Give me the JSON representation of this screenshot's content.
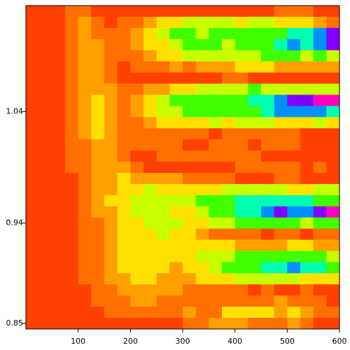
{
  "chart_data": {
    "type": "heatmap",
    "xlim": [
      0,
      600
    ],
    "ylim": [
      0.845,
      1.135
    ],
    "xticks": [
      100,
      200,
      300,
      400,
      500,
      600
    ],
    "yticks": [
      0.85,
      0.94,
      1.04
    ],
    "colors": [
      "#ff4000",
      "#ff7000",
      "#ffa000",
      "#ffe000",
      "#c8ff00",
      "#40ff00",
      "#00ffb0",
      "#0090ff",
      "#8000ff",
      "#ff00c0"
    ],
    "z": [
      [
        0,
        0,
        0,
        1,
        1,
        0,
        0,
        0,
        0,
        0,
        0,
        0,
        0,
        0,
        0,
        0,
        0,
        0,
        0,
        1,
        1,
        1,
        0,
        0
      ],
      [
        0,
        0,
        0,
        1,
        2,
        1,
        0,
        1,
        1,
        2,
        3,
        3,
        4,
        4,
        4,
        4,
        3,
        4,
        4,
        3,
        3,
        3,
        2,
        1
      ],
      [
        0,
        0,
        0,
        1,
        2,
        1,
        1,
        1,
        2,
        3,
        4,
        5,
        5,
        4,
        5,
        5,
        5,
        5,
        5,
        5,
        6,
        6,
        7,
        8
      ],
      [
        0,
        0,
        0,
        1,
        2,
        2,
        1,
        1,
        2,
        3,
        3,
        4,
        5,
        5,
        5,
        4,
        5,
        5,
        5,
        6,
        7,
        6,
        7,
        8
      ],
      [
        0,
        0,
        0,
        1,
        2,
        2,
        1,
        1,
        1,
        2,
        3,
        3,
        4,
        4,
        4,
        4,
        4,
        4,
        5,
        5,
        5,
        4,
        5,
        4
      ],
      [
        0,
        0,
        0,
        1,
        2,
        2,
        1,
        0,
        1,
        1,
        1,
        2,
        1,
        2,
        2,
        2,
        3,
        3,
        3,
        2,
        2,
        2,
        2,
        2
      ],
      [
        0,
        0,
        0,
        1,
        2,
        2,
        1,
        0,
        0,
        0,
        0,
        0,
        0,
        0,
        0,
        1,
        1,
        0,
        0,
        0,
        0,
        0,
        0,
        0
      ],
      [
        0,
        0,
        0,
        1,
        2,
        2,
        2,
        1,
        1,
        2,
        2,
        3,
        3,
        4,
        4,
        4,
        4,
        5,
        4,
        4,
        4,
        4,
        4,
        4
      ],
      [
        0,
        0,
        0,
        1,
        2,
        3,
        2,
        1,
        2,
        3,
        4,
        5,
        5,
        5,
        5,
        5,
        5,
        6,
        6,
        7,
        8,
        8,
        9,
        9
      ],
      [
        0,
        0,
        0,
        1,
        2,
        3,
        2,
        1,
        2,
        3,
        4,
        4,
        5,
        5,
        5,
        5,
        5,
        5,
        6,
        7,
        7,
        7,
        7,
        6
      ],
      [
        0,
        0,
        0,
        1,
        2,
        3,
        2,
        1,
        1,
        2,
        3,
        3,
        3,
        3,
        4,
        3,
        4,
        4,
        4,
        3,
        3,
        3,
        4,
        3
      ],
      [
        0,
        0,
        0,
        1,
        2,
        3,
        2,
        1,
        1,
        1,
        1,
        1,
        1,
        1,
        0,
        1,
        1,
        1,
        1,
        1,
        1,
        0,
        0,
        0
      ],
      [
        0,
        0,
        0,
        1,
        1,
        2,
        2,
        1,
        1,
        1,
        1,
        1,
        0,
        0,
        1,
        1,
        1,
        0,
        1,
        1,
        1,
        0,
        0,
        0
      ],
      [
        0,
        0,
        0,
        1,
        1,
        2,
        2,
        1,
        0,
        0,
        1,
        1,
        1,
        1,
        1,
        1,
        1,
        1,
        0,
        0,
        0,
        0,
        0,
        0
      ],
      [
        0,
        0,
        0,
        1,
        1,
        2,
        2,
        2,
        1,
        0,
        0,
        0,
        0,
        0,
        0,
        0,
        1,
        1,
        1,
        1,
        1,
        0,
        1,
        0
      ],
      [
        0,
        0,
        0,
        0,
        1,
        2,
        2,
        3,
        2,
        2,
        2,
        2,
        1,
        1,
        1,
        1,
        0,
        0,
        0,
        1,
        1,
        0,
        0,
        0
      ],
      [
        0,
        0,
        0,
        0,
        1,
        2,
        2,
        3,
        3,
        4,
        3,
        3,
        3,
        3,
        3,
        4,
        4,
        4,
        4,
        4,
        3,
        3,
        4,
        4
      ],
      [
        0,
        0,
        0,
        0,
        1,
        2,
        3,
        3,
        4,
        4,
        4,
        4,
        4,
        5,
        5,
        5,
        6,
        6,
        6,
        6,
        6,
        6,
        5,
        5
      ],
      [
        0,
        0,
        0,
        0,
        1,
        2,
        2,
        3,
        4,
        4,
        4,
        3,
        3,
        4,
        5,
        5,
        6,
        6,
        7,
        8,
        7,
        7,
        8,
        9
      ],
      [
        0,
        0,
        0,
        0,
        1,
        1,
        2,
        3,
        3,
        4,
        4,
        4,
        3,
        3,
        4,
        4,
        5,
        5,
        5,
        5,
        5,
        4,
        5,
        5
      ],
      [
        0,
        0,
        0,
        0,
        1,
        1,
        2,
        3,
        3,
        3,
        4,
        3,
        3,
        2,
        1,
        1,
        1,
        1,
        0,
        1,
        1,
        0,
        1,
        1
      ],
      [
        0,
        0,
        0,
        0,
        1,
        1,
        2,
        3,
        3,
        3,
        3,
        3,
        3,
        3,
        3,
        3,
        2,
        2,
        2,
        2,
        3,
        3,
        2,
        2
      ],
      [
        0,
        0,
        0,
        0,
        1,
        1,
        2,
        3,
        3,
        3,
        3,
        3,
        3,
        4,
        4,
        4,
        5,
        5,
        5,
        5,
        5,
        5,
        5,
        4
      ],
      [
        0,
        0,
        0,
        0,
        1,
        1,
        2,
        3,
        3,
        3,
        3,
        2,
        3,
        3,
        4,
        5,
        5,
        5,
        6,
        6,
        7,
        6,
        6,
        5
      ],
      [
        0,
        0,
        0,
        0,
        1,
        1,
        2,
        2,
        3,
        3,
        2,
        2,
        2,
        3,
        3,
        3,
        4,
        4,
        4,
        4,
        4,
        3,
        3,
        3
      ],
      [
        0,
        0,
        0,
        0,
        0,
        1,
        1,
        2,
        2,
        2,
        2,
        2,
        1,
        1,
        1,
        1,
        1,
        0,
        1,
        0,
        0,
        1,
        0,
        0
      ],
      [
        0,
        0,
        0,
        0,
        0,
        1,
        1,
        1,
        2,
        2,
        1,
        1,
        1,
        1,
        1,
        1,
        1,
        1,
        1,
        2,
        1,
        1,
        1,
        0
      ],
      [
        0,
        0,
        0,
        0,
        0,
        0,
        1,
        1,
        1,
        1,
        1,
        1,
        2,
        1,
        1,
        3,
        3,
        3,
        3,
        2,
        3,
        2,
        1,
        1
      ],
      [
        0,
        0,
        0,
        0,
        0,
        0,
        0,
        0,
        0,
        0,
        0,
        0,
        1,
        1,
        2,
        2,
        2,
        1,
        1,
        1,
        2,
        1,
        0,
        0
      ]
    ]
  }
}
